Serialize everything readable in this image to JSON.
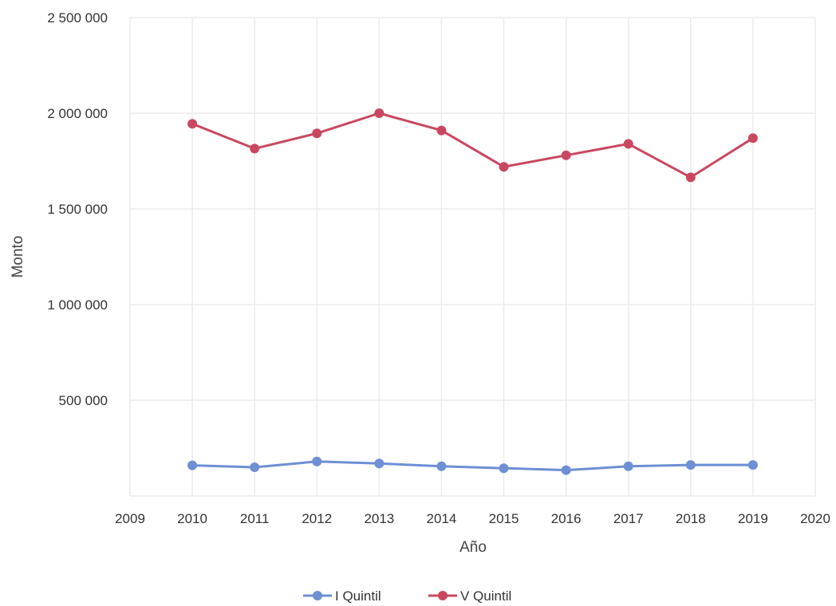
{
  "chart_data": {
    "type": "line",
    "xlabel": "Año",
    "ylabel": "Monto",
    "xlim": [
      2009,
      2020
    ],
    "ylim": [
      0,
      2500000
    ],
    "x_ticks": [
      2009,
      2010,
      2011,
      2012,
      2013,
      2014,
      2015,
      2016,
      2017,
      2018,
      2019,
      2020
    ],
    "x_tick_labels": [
      "2009",
      "2010",
      "2011",
      "2012",
      "2013",
      "2014",
      "2015",
      "2016",
      "2017",
      "2018",
      "2019",
      "2020"
    ],
    "y_ticks": [
      500000,
      1000000,
      1500000,
      2000000,
      2500000
    ],
    "y_tick_labels": [
      "500 000",
      "1 000 000",
      "1 500 000",
      "2 000 000",
      "2 500 000"
    ],
    "grid": true,
    "legend_position": "bottom",
    "series": [
      {
        "name": "I Quintil",
        "color": "#6e8fd4",
        "x": [
          2010,
          2011,
          2012,
          2013,
          2014,
          2015,
          2016,
          2017,
          2018,
          2019
        ],
        "values": [
          160000,
          150000,
          180000,
          170000,
          155000,
          145000,
          135000,
          155000,
          162000,
          162000
        ]
      },
      {
        "name": "V Quintil",
        "color": "#c9485f",
        "x": [
          2010,
          2011,
          2012,
          2013,
          2014,
          2015,
          2016,
          2017,
          2018,
          2019
        ],
        "values": [
          1945000,
          1815000,
          1895000,
          2000000,
          1910000,
          1720000,
          1780000,
          1840000,
          1665000,
          1870000
        ]
      }
    ]
  }
}
